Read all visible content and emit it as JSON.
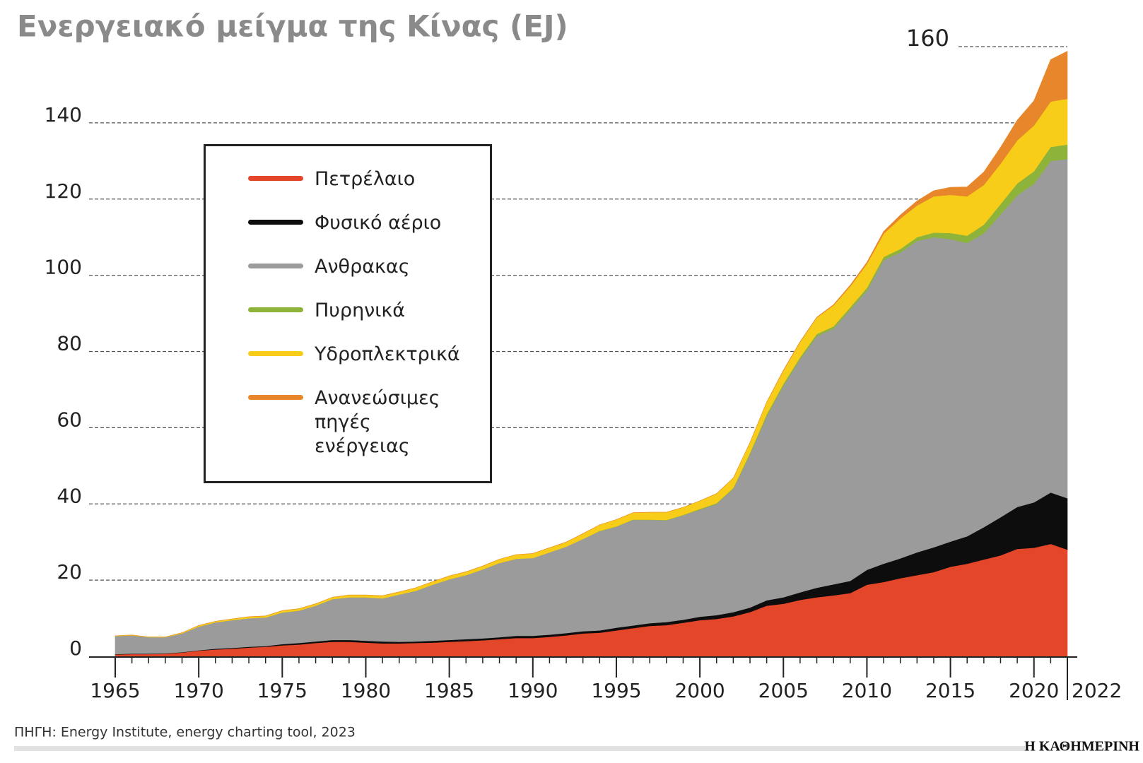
{
  "chart_data": {
    "type": "area",
    "title": "Ενεργειακό μείγμα της Κίνας (EJ)",
    "source": "ΠΗΓΗ: Energy Institute, energy charting tool, 2023",
    "publisher": "Η ΚΑΘΗΜΕΡΙΝΗ",
    "stacked": true,
    "x": [
      1965,
      1966,
      1967,
      1968,
      1969,
      1970,
      1971,
      1972,
      1973,
      1974,
      1975,
      1976,
      1977,
      1978,
      1979,
      1980,
      1981,
      1982,
      1983,
      1984,
      1985,
      1986,
      1987,
      1988,
      1989,
      1990,
      1991,
      1992,
      1993,
      1994,
      1995,
      1996,
      1997,
      1998,
      1999,
      2000,
      2001,
      2002,
      2003,
      2004,
      2005,
      2006,
      2007,
      2008,
      2009,
      2010,
      2011,
      2012,
      2013,
      2014,
      2015,
      2016,
      2017,
      2018,
      2019,
      2020,
      2021,
      2022
    ],
    "series": [
      {
        "name": "Πετρέλαιο",
        "color": "#e4462a",
        "values": [
          0.5,
          0.6,
          0.6,
          0.7,
          1.0,
          1.5,
          1.8,
          2.0,
          2.3,
          2.5,
          2.9,
          3.1,
          3.5,
          3.8,
          3.8,
          3.6,
          3.4,
          3.4,
          3.5,
          3.6,
          3.8,
          4.0,
          4.2,
          4.5,
          4.8,
          4.8,
          5.1,
          5.5,
          6.0,
          6.2,
          6.8,
          7.4,
          8.0,
          8.2,
          8.8,
          9.5,
          9.8,
          10.5,
          11.6,
          13.3,
          13.8,
          14.8,
          15.5,
          16.0,
          16.6,
          18.8,
          19.5,
          20.5,
          21.3,
          22.1,
          23.5,
          24.3,
          25.4,
          26.5,
          28.2,
          28.5,
          29.5,
          28.0
        ]
      },
      {
        "name": "Φυσικό αέριο",
        "color": "#0d0d0d",
        "values": [
          0.1,
          0.1,
          0.1,
          0.1,
          0.1,
          0.1,
          0.2,
          0.2,
          0.2,
          0.2,
          0.3,
          0.4,
          0.4,
          0.5,
          0.5,
          0.5,
          0.5,
          0.4,
          0.4,
          0.5,
          0.5,
          0.5,
          0.5,
          0.5,
          0.6,
          0.6,
          0.6,
          0.6,
          0.6,
          0.6,
          0.7,
          0.7,
          0.7,
          0.8,
          0.8,
          0.9,
          1.0,
          1.1,
          1.2,
          1.4,
          1.7,
          2.0,
          2.5,
          2.9,
          3.2,
          3.9,
          4.8,
          5.2,
          6.0,
          6.5,
          6.6,
          7.2,
          8.5,
          10.0,
          11.0,
          11.9,
          13.5,
          13.5
        ]
      },
      {
        "name": "Ανθρακας",
        "color": "#9b9b9b",
        "values": [
          4.7,
          4.8,
          4.3,
          4.2,
          4.9,
          6.2,
          6.9,
          7.3,
          7.5,
          7.5,
          8.3,
          8.5,
          9.4,
          10.7,
          11.2,
          11.4,
          11.3,
          12.4,
          13.3,
          14.7,
          15.9,
          16.8,
          18.1,
          19.5,
          20.2,
          20.4,
          21.6,
          22.7,
          24.2,
          26.0,
          26.5,
          27.7,
          27.1,
          26.7,
          27.4,
          28.1,
          29.2,
          32.4,
          40.2,
          48.3,
          55.5,
          61.2,
          66.0,
          67.1,
          71.2,
          73.3,
          79.7,
          80.3,
          81.7,
          81.4,
          79.4,
          77.0,
          77.1,
          79.5,
          81.8,
          83.6,
          87.0,
          89.0
        ]
      },
      {
        "name": "Πυρηνικά",
        "color": "#8db33a",
        "values": [
          0,
          0,
          0,
          0,
          0,
          0,
          0,
          0,
          0,
          0,
          0,
          0,
          0,
          0,
          0,
          0,
          0,
          0,
          0,
          0,
          0,
          0,
          0,
          0,
          0,
          0,
          0,
          0,
          0,
          0.1,
          0.1,
          0.1,
          0.1,
          0.1,
          0.1,
          0.2,
          0.2,
          0.2,
          0.4,
          0.5,
          0.5,
          0.5,
          0.6,
          0.6,
          0.6,
          0.7,
          0.8,
          0.9,
          1.0,
          1.2,
          1.6,
          1.9,
          2.3,
          2.7,
          3.1,
          3.3,
          3.7,
          3.8
        ]
      },
      {
        "name": "Υδροπλεκτρικά",
        "color": "#f7cd1a",
        "values": [
          0.1,
          0.1,
          0.1,
          0.1,
          0.2,
          0.3,
          0.3,
          0.3,
          0.4,
          0.4,
          0.5,
          0.5,
          0.5,
          0.5,
          0.6,
          0.6,
          0.7,
          0.7,
          0.8,
          0.8,
          0.9,
          0.9,
          0.9,
          1.0,
          1.1,
          1.2,
          1.2,
          1.2,
          1.4,
          1.6,
          1.8,
          1.8,
          1.9,
          2.0,
          2.0,
          2.1,
          2.5,
          2.6,
          2.7,
          3.2,
          3.5,
          4.0,
          4.3,
          5.5,
          5.5,
          6.3,
          6.1,
          8.0,
          8.3,
          9.5,
          10.0,
          10.3,
          10.4,
          10.6,
          11.3,
          12.0,
          11.9,
          12.0
        ]
      },
      {
        "name": "Ανανεώσιμες πηγές ενέργειας",
        "color": "#e8862b",
        "values": [
          0,
          0,
          0,
          0,
          0,
          0,
          0,
          0,
          0,
          0,
          0,
          0,
          0,
          0,
          0,
          0,
          0,
          0,
          0,
          0,
          0,
          0,
          0,
          0,
          0,
          0,
          0,
          0,
          0,
          0,
          0,
          0,
          0,
          0,
          0,
          0,
          0,
          0,
          0,
          0,
          0.1,
          0.1,
          0.1,
          0.2,
          0.3,
          0.4,
          0.6,
          0.9,
          1.2,
          1.5,
          2.0,
          2.5,
          3.4,
          4.3,
          5.3,
          6.5,
          11.0,
          12.5
        ]
      }
    ],
    "xlim": [
      1965,
      2022
    ],
    "xticks": [
      1965,
      1970,
      1975,
      1980,
      1985,
      1990,
      1995,
      2000,
      2005,
      2010,
      2015,
      2020,
      2022
    ],
    "ylim": [
      0,
      160
    ],
    "yticks": [
      0,
      20,
      40,
      60,
      80,
      100,
      120,
      140,
      160
    ],
    "grid": true
  }
}
